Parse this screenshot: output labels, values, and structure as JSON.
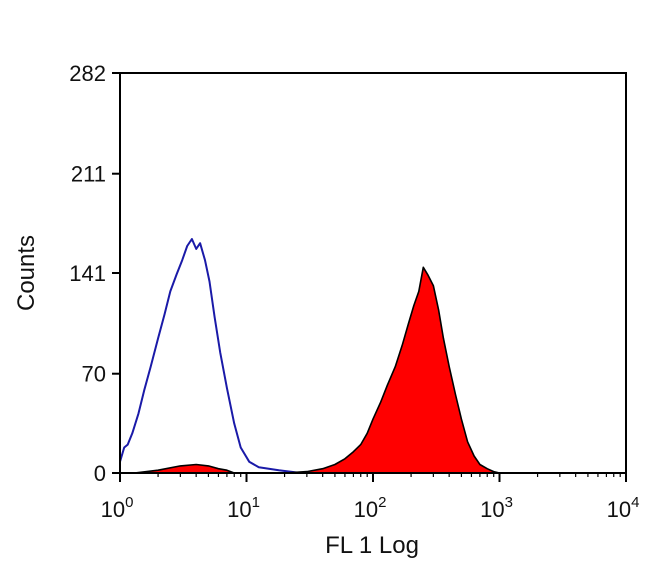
{
  "chart_data": {
    "type": "area",
    "title": "",
    "xlabel": "FL 1 Log",
    "ylabel": "Counts",
    "xscale": "log",
    "xlim": [
      1,
      10000
    ],
    "ylim": [
      0,
      282
    ],
    "x_ticks": [
      {
        "value": 1,
        "base": "10",
        "exp": "0"
      },
      {
        "value": 10,
        "base": "10",
        "exp": "1"
      },
      {
        "value": 100,
        "base": "10",
        "exp": "2"
      },
      {
        "value": 1000,
        "base": "10",
        "exp": "3"
      },
      {
        "value": 10000,
        "base": "10",
        "exp": "4"
      }
    ],
    "y_ticks": [
      0,
      70,
      141,
      211,
      282
    ],
    "grid": false,
    "legend": "none",
    "series": [
      {
        "style": "outline",
        "color": "#1a1aa8",
        "x": [
          1.0,
          1.08,
          1.15,
          1.25,
          1.4,
          1.55,
          1.75,
          2.0,
          2.25,
          2.5,
          2.8,
          3.1,
          3.4,
          3.7,
          4.0,
          4.3,
          4.7,
          5.1,
          5.6,
          6.2,
          7.0,
          8.0,
          9.0,
          10.5,
          12.5,
          15.0,
          18.0,
          22.0,
          27.0,
          33.0
        ],
        "y": [
          8,
          18,
          20,
          28,
          42,
          58,
          75,
          95,
          112,
          128,
          140,
          150,
          160,
          165,
          158,
          162,
          150,
          135,
          110,
          85,
          60,
          35,
          18,
          8,
          4,
          3,
          2,
          1,
          0,
          0
        ]
      },
      {
        "style": "filled",
        "color": "#ff0000",
        "x": [
          1.3,
          2,
          3,
          4,
          5,
          6,
          7,
          8
        ],
        "y": [
          0,
          2,
          5,
          6,
          5,
          3,
          2,
          0
        ]
      },
      {
        "style": "filled",
        "color": "#ff0000",
        "x": [
          20,
          30,
          40,
          50,
          60,
          70,
          80,
          90,
          100,
          115,
          130,
          150,
          170,
          190,
          210,
          230,
          250,
          270,
          300,
          330,
          360,
          400,
          450,
          500,
          560,
          630,
          700,
          800,
          900,
          1000
        ],
        "y": [
          0,
          1,
          3,
          6,
          10,
          15,
          20,
          28,
          38,
          50,
          62,
          75,
          90,
          105,
          118,
          128,
          145,
          140,
          132,
          115,
          95,
          75,
          55,
          38,
          22,
          12,
          6,
          3,
          1,
          0
        ]
      }
    ]
  }
}
